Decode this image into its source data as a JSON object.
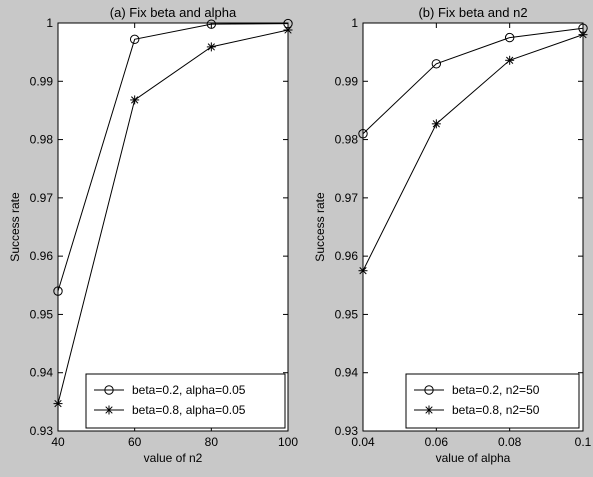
{
  "figure": {
    "background": "#c8c8c8",
    "plot_bg": "#ffffff",
    "line_color": "#000000"
  },
  "chart_data": [
    {
      "type": "line",
      "title": "(a) Fix beta and alpha",
      "xlabel": "value of n2",
      "ylabel": "Success rate",
      "xlim": [
        40,
        100
      ],
      "ylim": [
        0.93,
        1.0
      ],
      "xticks": [
        40,
        60,
        80,
        100
      ],
      "xtick_labels": [
        "40",
        "60",
        "80",
        "100"
      ],
      "yticks": [
        0.93,
        0.94,
        0.95,
        0.96,
        0.97,
        0.98,
        0.99,
        1.0
      ],
      "ytick_labels": [
        "0.93",
        "0.94",
        "0.95",
        "0.96",
        "0.97",
        "0.98",
        "0.99",
        "1"
      ],
      "grid": false,
      "legend_position": "bottom-right",
      "x": [
        40,
        60,
        80,
        100
      ],
      "series": [
        {
          "name": "beta=0.2, alpha=0.05",
          "marker": "circle",
          "values": [
            0.954,
            0.9972,
            0.9998,
            0.9999
          ]
        },
        {
          "name": "beta=0.8, alpha=0.05",
          "marker": "star",
          "values": [
            0.9347,
            0.9868,
            0.9959,
            0.9988
          ]
        }
      ]
    },
    {
      "type": "line",
      "title": "(b) Fix beta and n2",
      "xlabel": "value of alpha",
      "ylabel": "Success rate",
      "xlim": [
        0.04,
        0.1
      ],
      "ylim": [
        0.93,
        1.0
      ],
      "xticks": [
        0.04,
        0.06,
        0.08,
        0.1
      ],
      "xtick_labels": [
        "0.04",
        "0.06",
        "0.08",
        "0.1"
      ],
      "yticks": [
        0.93,
        0.94,
        0.95,
        0.96,
        0.97,
        0.98,
        0.99,
        1.0
      ],
      "ytick_labels": [
        "0.93",
        "0.94",
        "0.95",
        "0.96",
        "0.97",
        "0.98",
        "0.99",
        "1"
      ],
      "grid": false,
      "legend_position": "bottom-right",
      "x": [
        0.04,
        0.06,
        0.08,
        0.1
      ],
      "series": [
        {
          "name": "beta=0.2, n2=50",
          "marker": "circle",
          "values": [
            0.981,
            0.993,
            0.9975,
            0.9991
          ]
        },
        {
          "name": "beta=0.8, n2=50",
          "marker": "star",
          "values": [
            0.9575,
            0.9827,
            0.9936,
            0.998
          ]
        }
      ]
    }
  ]
}
